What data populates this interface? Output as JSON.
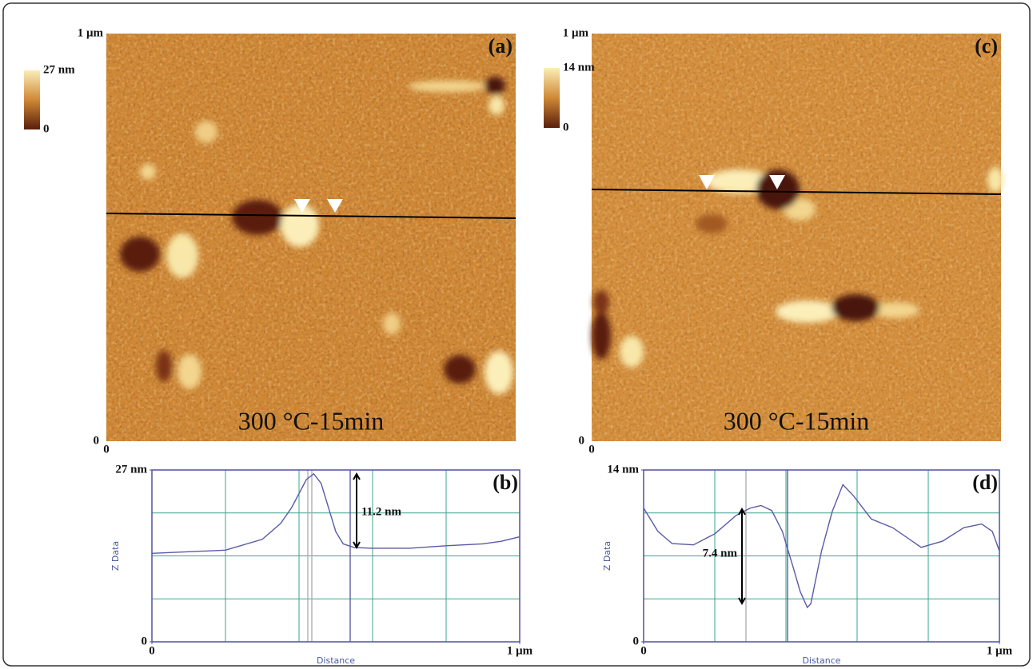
{
  "figure": {
    "panels": [
      {
        "label": "(a)",
        "y_top": "1 μm",
        "y_bottom": "0",
        "x_left": "0",
        "colorbar_max": "27 nm",
        "colorbar_min": "0",
        "caption": "300 °C-15min"
      },
      {
        "label": "(c)",
        "y_top": "1 μm",
        "y_bottom": "0",
        "x_left": "0",
        "colorbar_max": "14 nm",
        "colorbar_min": "0",
        "caption": "300 °C-15min"
      }
    ]
  },
  "chart_data": [
    {
      "type": "line",
      "label": "(b)",
      "x_label": "Distance",
      "y_label": "Z Data",
      "annotation": "11.2 nm",
      "grid": true,
      "x": [
        0,
        0.2,
        0.3,
        0.35,
        0.38,
        0.42,
        0.44,
        0.46,
        0.48,
        0.5,
        0.52,
        0.55,
        0.6,
        0.7,
        0.8,
        0.9,
        0.95,
        1
      ],
      "series": [
        {
          "color": "#5a5aa8",
          "values": [
            13.9,
            14.4,
            16.1,
            18.6,
            21.1,
            25.5,
            26.4,
            24.9,
            21.1,
            17.3,
            15.4,
            14.8,
            14.7,
            14.7,
            15.1,
            15.4,
            15.8,
            16.5
          ]
        }
      ],
      "xlim": [
        0,
        1
      ],
      "ylim": [
        0,
        27
      ],
      "xticks": [
        0,
        {
          "value": 1,
          "label": "1 μm"
        }
      ],
      "yticks": [
        0,
        {
          "value": 27,
          "label": "27 nm"
        }
      ]
    },
    {
      "type": "line",
      "label": "(d)",
      "x_label": "Distance",
      "y_label": "Z Data",
      "annotation": "7.4 nm",
      "grid": true,
      "x": [
        0,
        0.04,
        0.08,
        0.14,
        0.2,
        0.26,
        0.3,
        0.33,
        0.36,
        0.39,
        0.42,
        0.44,
        0.46,
        0.47,
        0.5,
        0.53,
        0.56,
        0.59,
        0.64,
        0.7,
        0.78,
        0.84,
        0.9,
        0.95,
        0.98,
        1
      ],
      "series": [
        {
          "color": "#5a5aa8",
          "values": [
            10.9,
            9.0,
            8.0,
            7.9,
            8.8,
            10.3,
            10.9,
            11.1,
            10.7,
            9.0,
            6.1,
            4.1,
            2.8,
            3.1,
            7.4,
            10.6,
            12.8,
            11.9,
            10.0,
            9.3,
            7.7,
            8.2,
            9.3,
            9.6,
            9.0,
            7.4
          ]
        }
      ],
      "xlim": [
        0,
        1
      ],
      "ylim": [
        0,
        14
      ],
      "xticks": [
        0,
        {
          "value": 1,
          "label": "1 μm"
        }
      ],
      "yticks": [
        0,
        {
          "value": 14,
          "label": "14 nm"
        }
      ]
    }
  ]
}
